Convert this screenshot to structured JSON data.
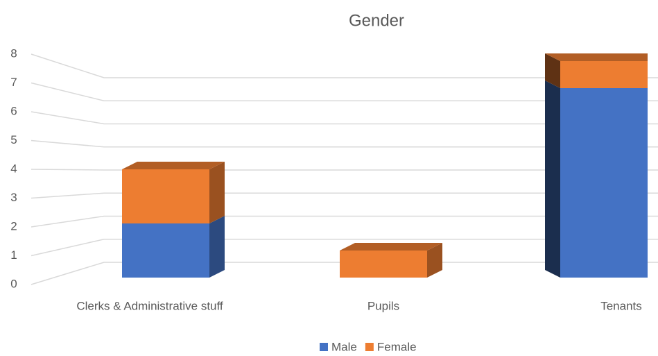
{
  "chart_data": {
    "type": "bar3d_stacked",
    "title": "Gender",
    "categories": [
      "Clerks & Administrative stuff",
      "Pupils",
      "Tenants"
    ],
    "series": [
      {
        "name": "Male",
        "color": "#4472c4",
        "values": [
          2,
          0,
          7
        ]
      },
      {
        "name": "Female",
        "color": "#ed7d31",
        "values": [
          2,
          1,
          1
        ]
      }
    ],
    "ylim": [
      0,
      8
    ],
    "yticks": [
      0,
      1,
      2,
      3,
      4,
      5,
      6,
      7,
      8
    ],
    "grid": true,
    "legend": "bottom"
  }
}
